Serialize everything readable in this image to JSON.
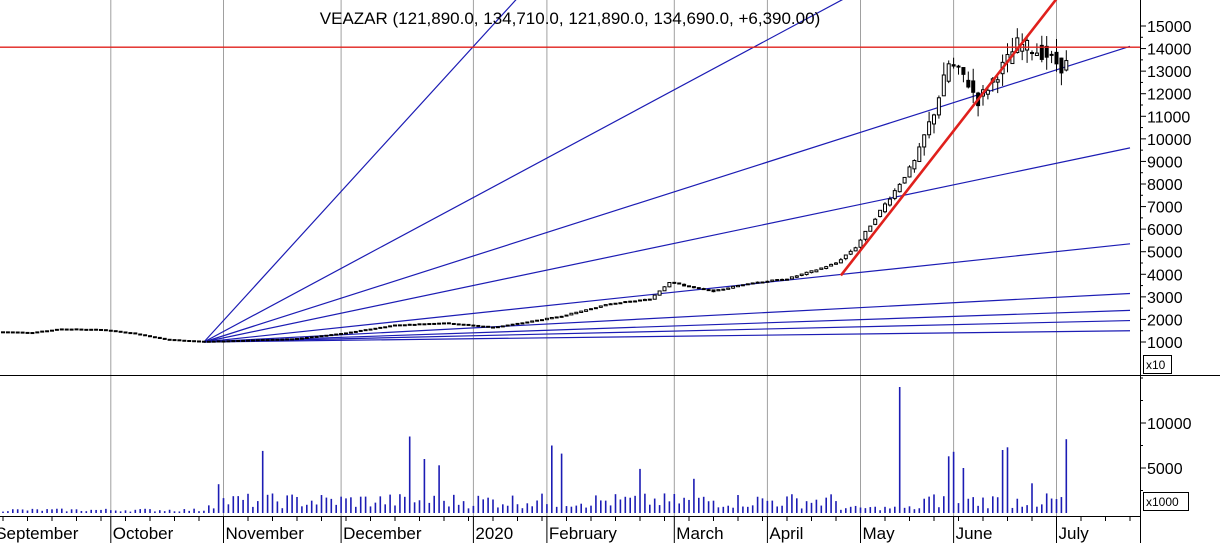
{
  "chart_data": {
    "type": "candlestick",
    "title": "VEAZAR (121,890.0, 134,710.0, 121,890.0, 134,690.0, +6,390.00)",
    "price_axis": {
      "ticks": [
        1000,
        2000,
        3000,
        4000,
        5000,
        6000,
        7000,
        8000,
        9000,
        10000,
        11000,
        12000,
        13000,
        14000,
        15000
      ],
      "tick_labels": [
        "1000",
        "2000",
        "3000",
        "4000",
        "5000",
        "6000",
        "7000",
        "8000",
        "9000",
        "10000",
        "11000",
        "12000",
        "13000",
        "14000",
        "15000"
      ],
      "multiplier_label": "x10",
      "range": [
        -350,
        15700
      ]
    },
    "volume_axis": {
      "ticks": [
        5000,
        10000
      ],
      "tick_labels": [
        "5000",
        "10000"
      ],
      "multiplier_label": "x1000",
      "range": [
        0,
        15000
      ]
    },
    "time_axis": {
      "labels": [
        "September",
        "October",
        "November",
        "December",
        "2020",
        "February",
        "March",
        "April",
        "May",
        "June",
        "July"
      ],
      "total_bars": 230
    },
    "horizontal_line": {
      "value": 14060,
      "color": "#e0201c"
    },
    "trend_line": {
      "from": [
        171,
        3950
      ],
      "to": [
        215,
        16200
      ],
      "color": "#e0201c"
    },
    "gann_fan": {
      "origin": [
        41,
        1000
      ],
      "through_x": 230,
      "end_values": [
        1500,
        1950,
        2400,
        3150,
        5350,
        9600,
        14100,
        23000,
        46000
      ],
      "color": "#1c1cb4"
    },
    "price_anchors": [
      [
        0,
        1450
      ],
      [
        6,
        1420
      ],
      [
        12,
        1580
      ],
      [
        20,
        1550
      ],
      [
        26,
        1400
      ],
      [
        33,
        1120
      ],
      [
        41,
        1020
      ],
      [
        60,
        1150
      ],
      [
        70,
        1400
      ],
      [
        80,
        1750
      ],
      [
        90,
        1850
      ],
      [
        100,
        1650
      ],
      [
        106,
        1850
      ],
      [
        114,
        2150
      ],
      [
        124,
        2700
      ],
      [
        132,
        2900
      ],
      [
        136,
        3650
      ],
      [
        141,
        3400
      ],
      [
        145,
        3250
      ],
      [
        152,
        3600
      ],
      [
        160,
        3800
      ],
      [
        166,
        4200
      ],
      [
        170,
        4500
      ],
      [
        174,
        5200
      ],
      [
        178,
        6500
      ],
      [
        182,
        7700
      ],
      [
        186,
        9000
      ],
      [
        190,
        11200
      ],
      [
        193,
        13300
      ],
      [
        196,
        12800
      ],
      [
        199,
        11700
      ],
      [
        202,
        12600
      ],
      [
        205,
        13500
      ],
      [
        207,
        14200
      ],
      [
        210,
        14000
      ],
      [
        213,
        13700
      ],
      [
        216,
        13200
      ],
      [
        217,
        13469
      ]
    ],
    "volume_spikes": [
      [
        44,
        3200
      ],
      [
        53,
        6900
      ],
      [
        83,
        8500
      ],
      [
        86,
        6000
      ],
      [
        89,
        5300
      ],
      [
        112,
        7500
      ],
      [
        114,
        6600
      ],
      [
        130,
        4900
      ],
      [
        141,
        3800
      ],
      [
        183,
        14000
      ],
      [
        193,
        6300
      ],
      [
        194,
        6800
      ],
      [
        196,
        5000
      ],
      [
        204,
        7000
      ],
      [
        205,
        7300
      ],
      [
        210,
        3300
      ],
      [
        217,
        8200
      ]
    ],
    "colors": {
      "candle": "#000000",
      "volume": "#1c1cb4",
      "grid": "#a0a0a0"
    }
  }
}
